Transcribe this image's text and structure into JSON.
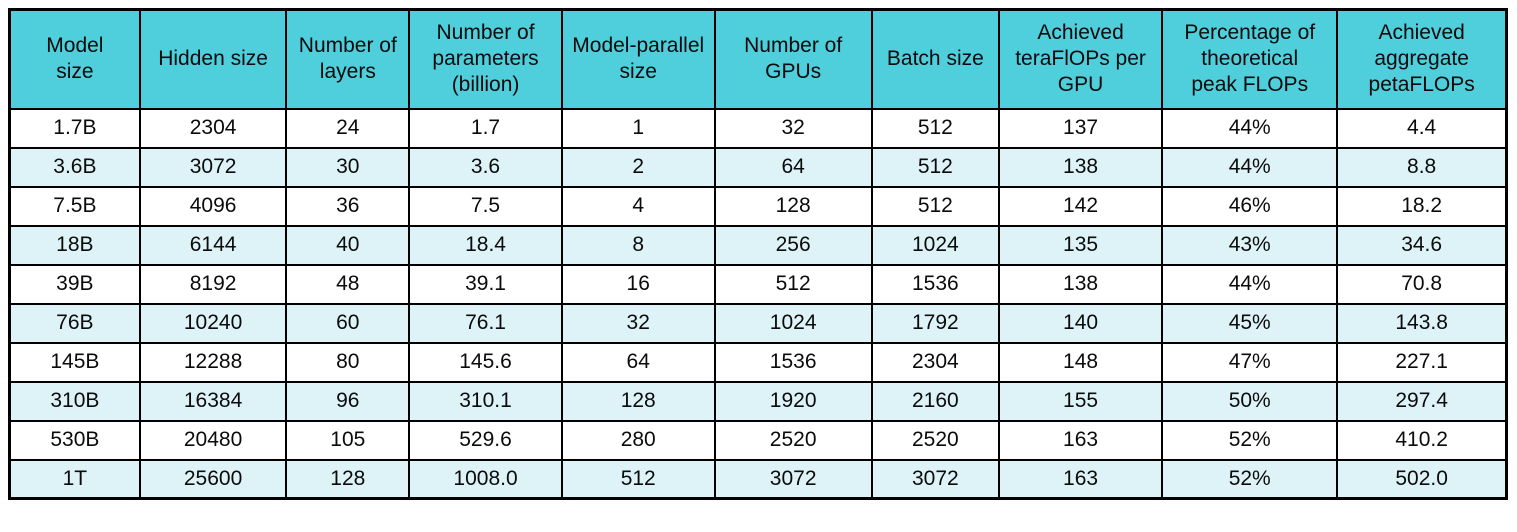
{
  "style": {
    "header_bg": "#4FCEDC",
    "stripe_bg": "#DEF3F8",
    "row_bg": "#FFFFFF",
    "border_color": "#000000",
    "text_color": "#0B0B0B"
  },
  "chart_data": {
    "type": "table",
    "columns": [
      "Model\nsize",
      "Hidden size",
      "Number of\nlayers",
      "Number of\nparameters\n(billion)",
      "Model-parallel\nsize",
      "Number of\nGPUs",
      "Batch size",
      "Achieved\nteraFlOPs per\nGPU",
      "Percentage of\ntheoretical\npeak FLOPs",
      "Achieved\naggregate\npetaFLOPs"
    ],
    "rows": [
      [
        "1.7B",
        "2304",
        "24",
        "1.7",
        "1",
        "32",
        "512",
        "137",
        "44%",
        "4.4"
      ],
      [
        "3.6B",
        "3072",
        "30",
        "3.6",
        "2",
        "64",
        "512",
        "138",
        "44%",
        "8.8"
      ],
      [
        "7.5B",
        "4096",
        "36",
        "7.5",
        "4",
        "128",
        "512",
        "142",
        "46%",
        "18.2"
      ],
      [
        "18B",
        "6144",
        "40",
        "18.4",
        "8",
        "256",
        "1024",
        "135",
        "43%",
        "34.6"
      ],
      [
        "39B",
        "8192",
        "48",
        "39.1",
        "16",
        "512",
        "1536",
        "138",
        "44%",
        "70.8"
      ],
      [
        "76B",
        "10240",
        "60",
        "76.1",
        "32",
        "1024",
        "1792",
        "140",
        "45%",
        "143.8"
      ],
      [
        "145B",
        "12288",
        "80",
        "145.6",
        "64",
        "1536",
        "2304",
        "148",
        "47%",
        "227.1"
      ],
      [
        "310B",
        "16384",
        "96",
        "310.1",
        "128",
        "1920",
        "2160",
        "155",
        "50%",
        "297.4"
      ],
      [
        "530B",
        "20480",
        "105",
        "529.6",
        "280",
        "2520",
        "2520",
        "163",
        "52%",
        "410.2"
      ],
      [
        "1T",
        "25600",
        "128",
        "1008.0",
        "512",
        "3072",
        "3072",
        "163",
        "52%",
        "502.0"
      ]
    ]
  }
}
